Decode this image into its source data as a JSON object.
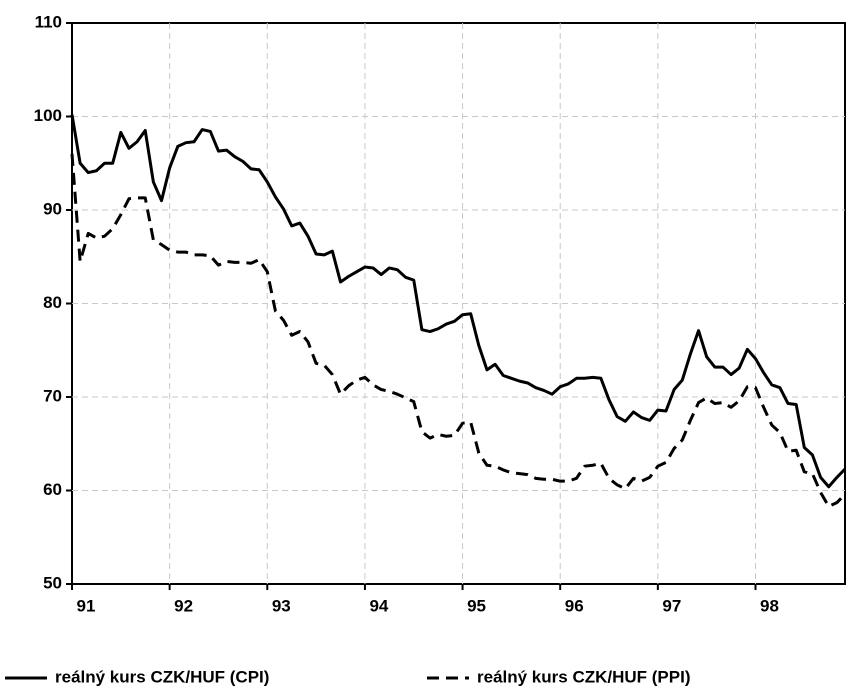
{
  "chart_data": {
    "type": "line",
    "x": [
      91,
      91.0833,
      91.1667,
      91.25,
      91.3333,
      91.4167,
      91.5,
      91.5833,
      91.6667,
      91.75,
      91.8333,
      91.9167,
      92,
      92.0833,
      92.1667,
      92.25,
      92.3333,
      92.4167,
      92.5,
      92.5833,
      92.6667,
      92.75,
      92.8333,
      92.9167,
      93,
      93.0833,
      93.1667,
      93.25,
      93.3333,
      93.4167,
      93.5,
      93.5833,
      93.6667,
      93.75,
      93.8333,
      93.9167,
      94,
      94.0833,
      94.1667,
      94.25,
      94.3333,
      94.4167,
      94.5,
      94.5833,
      94.6667,
      94.75,
      94.8333,
      94.9167,
      95,
      95.0833,
      95.1667,
      95.25,
      95.3333,
      95.4167,
      95.5,
      95.5833,
      95.6667,
      95.75,
      95.8333,
      95.9167,
      96,
      96.0833,
      96.1667,
      96.25,
      96.3333,
      96.4167,
      96.5,
      96.5833,
      96.6667,
      96.75,
      96.8333,
      96.9167,
      97,
      97.0833,
      97.1667,
      97.25,
      97.3333,
      97.4167,
      97.5,
      97.5833,
      97.6667,
      97.75,
      97.8333,
      97.9167,
      98,
      98.0833,
      98.1667,
      98.25,
      98.3333,
      98.4167,
      98.5,
      98.5833,
      98.6667,
      98.75,
      98.8333,
      98.9167
    ],
    "series": [
      {
        "name": "reálný kurs CZK/HUF (CPI)",
        "color": "#000000",
        "dash": "solid",
        "values": [
          100.2,
          95,
          94,
          94.2,
          95,
          95,
          98.3,
          96.6,
          97.3,
          98.5,
          93,
          91,
          94.5,
          96.8,
          97.2,
          97.3,
          98.6,
          98.4,
          96.3,
          96.4,
          95.7,
          95.2,
          94.4,
          94.3,
          93,
          91.4,
          90.1,
          88.3,
          88.6,
          87.2,
          85.3,
          85.2,
          85.6,
          82.3,
          82.9,
          83.4,
          83.9,
          83.8,
          83.1,
          83.8,
          83.6,
          82.8,
          82.5,
          77.2,
          77,
          77.3,
          77.8,
          78.1,
          78.8,
          78.9,
          75.5,
          72.9,
          73.5,
          72.3,
          72,
          71.7,
          71.5,
          71,
          70.7,
          70.3,
          71.1,
          71.4,
          72,
          72,
          72.1,
          72,
          69.7,
          67.9,
          67.4,
          68.4,
          67.8,
          67.5,
          68.6,
          68.5,
          70.8,
          71.8,
          74.6,
          77.1,
          74.3,
          73.2,
          73.2,
          72.4,
          73.1,
          75.1,
          74.1,
          72.6,
          71.3,
          71,
          69.3,
          69.2,
          64.6,
          63.8,
          61.4,
          60.4,
          61.4,
          62.3
        ]
      },
      {
        "name": "reálný kurs CZK/HUF (PPI)",
        "color": "#000000",
        "dash": "dashed",
        "values": [
          96,
          84.5,
          87.5,
          87,
          87.2,
          88,
          89.5,
          91.2,
          91.3,
          91.3,
          86.8,
          86.3,
          85.7,
          85.5,
          85.5,
          85.2,
          85.2,
          85.1,
          84.1,
          84.5,
          84.4,
          84.4,
          84.3,
          84.7,
          83.4,
          79.2,
          78.2,
          76.6,
          77,
          75.9,
          73.6,
          73.4,
          72.4,
          70.3,
          71.2,
          71.8,
          72.1,
          71.3,
          70.8,
          70.6,
          70.3,
          69.9,
          69.5,
          66.3,
          65.6,
          66,
          65.8,
          65.9,
          67.2,
          67.3,
          64,
          62.7,
          62.6,
          62.2,
          61.9,
          61.8,
          61.7,
          61.3,
          61.2,
          61.2,
          61,
          61,
          61.3,
          62.6,
          62.7,
          62.9,
          61.3,
          60.6,
          60.2,
          61.3,
          61,
          61.4,
          62.6,
          63,
          64.5,
          65.4,
          67.5,
          69.4,
          69.9,
          69.3,
          69.4,
          68.9,
          69.6,
          71.1,
          71,
          68.9,
          67,
          66.2,
          64.2,
          64.3,
          62,
          61.8,
          59.8,
          58.3,
          58.7,
          59.6
        ]
      }
    ],
    "xlim": [
      91,
      98.9167
    ],
    "xticks": [
      91,
      92,
      93,
      94,
      95,
      96,
      97,
      98
    ],
    "ylim": [
      50,
      110
    ],
    "yticks": [
      50,
      60,
      70,
      80,
      90,
      100,
      110
    ],
    "grid": true,
    "legend": "bottom"
  }
}
